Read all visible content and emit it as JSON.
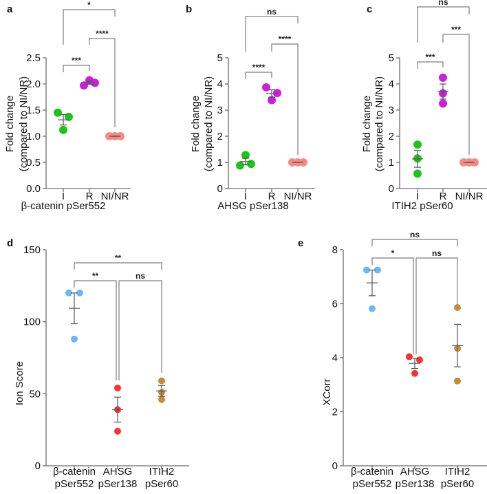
{
  "chart_data": [
    {
      "panel": "a",
      "type": "scatter",
      "ylabel": [
        "Fold change",
        "(compared to NI/NR)"
      ],
      "xlabel": "β-catenin pSer552",
      "ylim": [
        0,
        2.5
      ],
      "yticks": [
        "0.0",
        "0.5",
        "1.0",
        "1.5",
        "2.0",
        "2.5"
      ],
      "categories": [
        [
          "I"
        ],
        [
          "R"
        ],
        [
          "NI/NR"
        ]
      ],
      "series": [
        {
          "name": "I",
          "values": [
            1.45,
            1.12,
            1.37
          ],
          "color": "#1ec41e"
        },
        {
          "name": "R",
          "values": [
            1.97,
            2.07,
            2.02
          ],
          "color": "#cc1fdc"
        },
        {
          "name": "NI/NR",
          "values": [
            1.0,
            1.0,
            1.0
          ],
          "color": "#f58a84"
        }
      ],
      "brackets": [
        {
          "from": 0,
          "to": 2,
          "label": "*"
        },
        {
          "from": 1,
          "to": 2,
          "label": "****"
        },
        {
          "from": 0,
          "to": 1,
          "label": "***"
        }
      ]
    },
    {
      "panel": "b",
      "type": "scatter",
      "ylabel": [
        "Fold change",
        "(compared to NI/NR)"
      ],
      "xlabel": "AHSG pSer138",
      "ylim": [
        0,
        5
      ],
      "yticks": [
        "0",
        "1",
        "2",
        "3",
        "4",
        "5"
      ],
      "categories": [
        [
          "I"
        ],
        [
          "R"
        ],
        [
          "NI/NR"
        ]
      ],
      "series": [
        {
          "name": "I",
          "values": [
            0.88,
            1.28,
            0.94
          ],
          "color": "#1ec41e"
        },
        {
          "name": "R",
          "values": [
            3.87,
            3.38,
            3.65
          ],
          "color": "#cc1fdc"
        },
        {
          "name": "NI/NR",
          "values": [
            1.0,
            1.0,
            1.0
          ],
          "color": "#f58a84"
        }
      ],
      "brackets": [
        {
          "from": 0,
          "to": 2,
          "label": "ns"
        },
        {
          "from": 1,
          "to": 2,
          "label": "****"
        },
        {
          "from": 0,
          "to": 1,
          "label": "****"
        }
      ]
    },
    {
      "panel": "c",
      "type": "scatter",
      "ylabel": [
        "Fold change",
        "(compared to NI/NR)"
      ],
      "xlabel": "ITIH2 pSer60",
      "ylim": [
        0,
        5
      ],
      "yticks": [
        "0",
        "1",
        "2",
        "3",
        "4",
        "5"
      ],
      "categories": [
        [
          "I"
        ],
        [
          "R"
        ],
        [
          "NI/NR"
        ]
      ],
      "series": [
        {
          "name": "I",
          "values": [
            1.68,
            1.15,
            0.57
          ],
          "color": "#1ec41e"
        },
        {
          "name": "R",
          "values": [
            4.24,
            3.64,
            3.25
          ],
          "color": "#cc1fdc"
        },
        {
          "name": "NI/NR",
          "values": [
            1.0,
            1.0,
            1.0
          ],
          "color": "#f58a84"
        }
      ],
      "brackets": [
        {
          "from": 0,
          "to": 2,
          "label": "ns"
        },
        {
          "from": 1,
          "to": 2,
          "label": "***"
        },
        {
          "from": 0,
          "to": 1,
          "label": "***"
        }
      ]
    },
    {
      "panel": "d",
      "type": "scatter",
      "ylabel": [
        "Ion Score"
      ],
      "xlabel": "",
      "ylim": [
        0,
        150
      ],
      "yticks": [
        "0",
        "50",
        "100",
        "150"
      ],
      "categories": [
        [
          "β-catenin",
          "pSer552"
        ],
        [
          "AHSG",
          "pSer138"
        ],
        [
          "ITIH2",
          "pSer60"
        ]
      ],
      "series": [
        {
          "name": "β-catenin pSer552",
          "values": [
            120,
            120,
            88
          ],
          "color": "#6db8f2"
        },
        {
          "name": "AHSG pSer138",
          "values": [
            54,
            39,
            24
          ],
          "color": "#f43434"
        },
        {
          "name": "ITIH2 pSer60",
          "values": [
            59,
            51,
            46
          ],
          "color": "#c98a3c"
        }
      ],
      "brackets": [
        {
          "from": 0,
          "to": 2,
          "label": "**"
        },
        {
          "from": 0,
          "to": 1,
          "label": "**"
        },
        {
          "from": 1,
          "to": 2,
          "label": "ns"
        }
      ]
    },
    {
      "panel": "e",
      "type": "scatter",
      "ylabel": [
        "XCorr"
      ],
      "xlabel": "",
      "ylim": [
        0,
        8
      ],
      "yticks": [
        "0",
        "2",
        "4",
        "6",
        "8"
      ],
      "categories": [
        [
          "β-catenin",
          "pSer552"
        ],
        [
          "AHSG",
          "pSer138"
        ],
        [
          "ITIH2",
          "pSer60"
        ]
      ],
      "series": [
        {
          "name": "β-catenin pSer552",
          "values": [
            7.25,
            7.25,
            5.82
          ],
          "color": "#6db8f2"
        },
        {
          "name": "AHSG pSer138",
          "values": [
            4.04,
            3.92,
            3.42
          ],
          "color": "#f43434"
        },
        {
          "name": "ITIH2 pSer60",
          "values": [
            5.86,
            4.35,
            3.14
          ],
          "color": "#c98a3c"
        }
      ],
      "brackets": [
        {
          "from": 0,
          "to": 2,
          "label": "ns"
        },
        {
          "from": 0,
          "to": 1,
          "label": "*"
        },
        {
          "from": 1,
          "to": 2,
          "label": "ns"
        }
      ]
    }
  ]
}
